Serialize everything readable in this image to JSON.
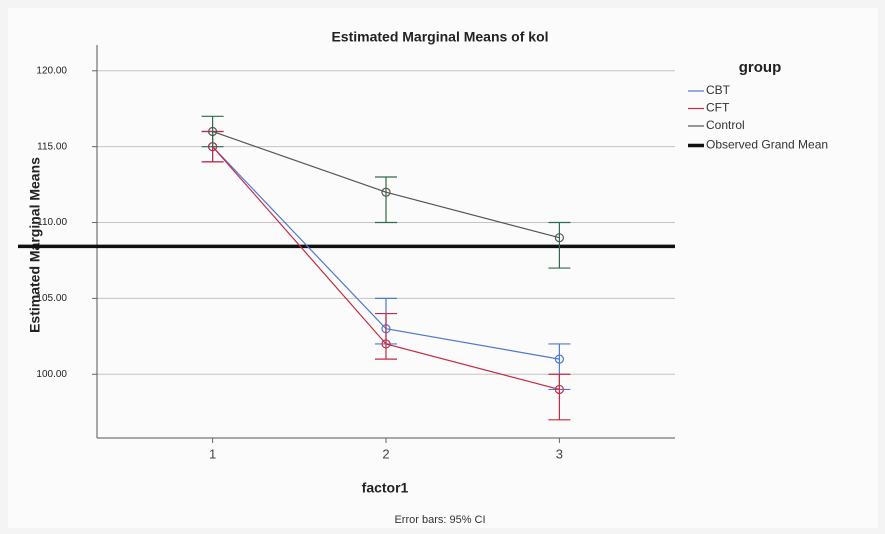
{
  "chart_data": {
    "type": "line",
    "title": "Estimated Marginal Means of kol",
    "x_label": "factor1",
    "y_label": "Estimated Marginal Means",
    "legend_title": "group",
    "footnote": "Error bars: 95% CI",
    "categories": [
      "1",
      "2",
      "3"
    ],
    "ylim": [
      95.8,
      121.7
    ],
    "yticks": [
      {
        "value": 100,
        "label": "100.00"
      },
      {
        "value": 105,
        "label": "105.00"
      },
      {
        "value": 110,
        "label": "110.00"
      },
      {
        "value": 115,
        "label": "115.00"
      },
      {
        "value": 120,
        "label": "120.00"
      }
    ],
    "grid": true,
    "legend_position": "right",
    "series": [
      {
        "name": "CBT",
        "color": "#4f78d0",
        "values": [
          115,
          103,
          101
        ],
        "lower": [
          114,
          102,
          99
        ],
        "upper": [
          116,
          105,
          102
        ]
      },
      {
        "name": "CFT",
        "color": "#c42a44",
        "values": [
          115,
          102,
          99
        ],
        "lower": [
          114,
          101,
          97
        ],
        "upper": [
          116,
          104,
          100
        ]
      },
      {
        "name": "Control",
        "color": "#555555",
        "error_color": "#2f6b4a",
        "values": [
          116,
          112,
          109
        ],
        "lower": [
          115,
          110,
          107
        ],
        "upper": [
          117,
          113,
          110
        ]
      }
    ],
    "reference_line": {
      "name": "Observed Grand Mean",
      "value": 108.43,
      "color": "#111111"
    }
  }
}
